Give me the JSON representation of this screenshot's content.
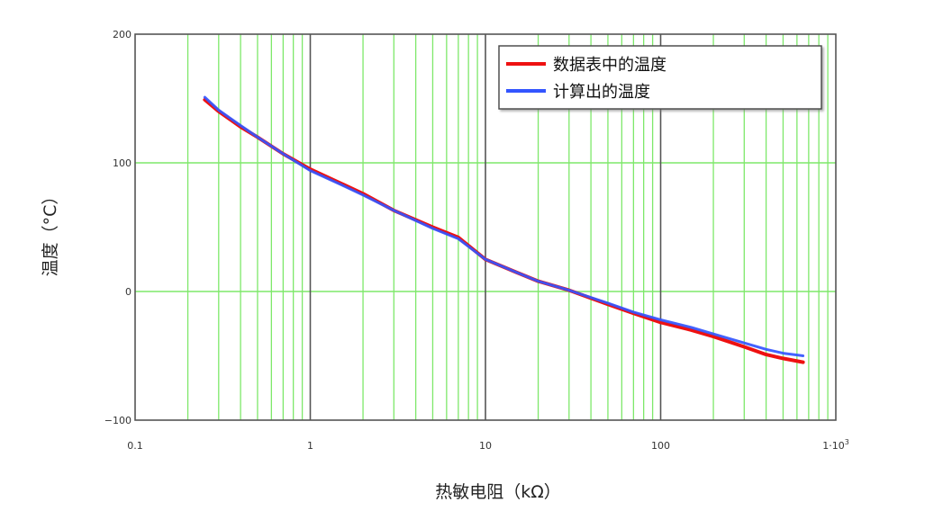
{
  "chart_data": {
    "type": "line",
    "xlabel": "热敏电阻（kΩ）",
    "ylabel": "温度（°C）",
    "xscale": "log",
    "xlim": [
      0.1,
      1000
    ],
    "ylim": [
      -100,
      200
    ],
    "grid": true,
    "legend_position": "top-right",
    "x_tick_labels": [
      {
        "value": 0.1,
        "label": "0.1"
      },
      {
        "value": 1,
        "label": "1"
      },
      {
        "value": 10,
        "label": "10"
      },
      {
        "value": 100,
        "label": "100"
      },
      {
        "value": 1000,
        "label": "1·10",
        "sup": "3"
      }
    ],
    "y_tick_labels": [
      {
        "value": 200,
        "label": "200"
      },
      {
        "value": 100,
        "label": "100"
      },
      {
        "value": 0,
        "label": "0"
      },
      {
        "value": -100,
        "label": "−100"
      }
    ],
    "series": [
      {
        "name": "数据表中的温度",
        "color": "#ee1111",
        "points": [
          [
            0.25,
            149
          ],
          [
            0.3,
            140
          ],
          [
            0.4,
            128
          ],
          [
            0.5,
            120
          ],
          [
            0.7,
            107
          ],
          [
            1,
            95
          ],
          [
            1.5,
            84
          ],
          [
            2,
            76
          ],
          [
            3,
            63
          ],
          [
            5,
            50
          ],
          [
            7,
            42
          ],
          [
            10,
            25
          ],
          [
            15,
            15
          ],
          [
            20,
            8
          ],
          [
            30,
            1
          ],
          [
            50,
            -10
          ],
          [
            70,
            -17
          ],
          [
            100,
            -24
          ],
          [
            150,
            -30
          ],
          [
            200,
            -35
          ],
          [
            300,
            -43
          ],
          [
            400,
            -49
          ],
          [
            500,
            -52
          ],
          [
            650,
            -55
          ]
        ]
      },
      {
        "name": "计算出的温度",
        "color": "#3355ff",
        "points": [
          [
            0.25,
            151
          ],
          [
            0.3,
            141
          ],
          [
            0.4,
            129
          ],
          [
            0.5,
            120
          ],
          [
            0.7,
            107
          ],
          [
            1,
            94
          ],
          [
            1.5,
            83
          ],
          [
            2,
            75
          ],
          [
            3,
            63
          ],
          [
            5,
            49
          ],
          [
            7,
            41
          ],
          [
            10,
            25
          ],
          [
            15,
            15
          ],
          [
            20,
            8
          ],
          [
            30,
            1
          ],
          [
            50,
            -9
          ],
          [
            70,
            -16
          ],
          [
            100,
            -22
          ],
          [
            150,
            -28
          ],
          [
            200,
            -33
          ],
          [
            300,
            -40
          ],
          [
            400,
            -45
          ],
          [
            500,
            -48
          ],
          [
            650,
            -50
          ]
        ]
      }
    ]
  }
}
